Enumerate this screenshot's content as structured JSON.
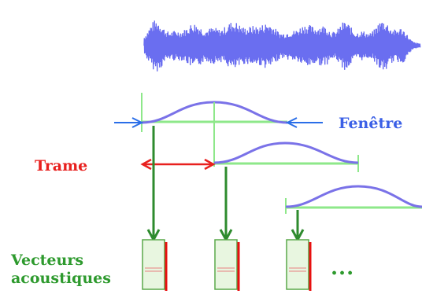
{
  "labels": {
    "window": "Fenêtre",
    "frame": "Trame",
    "acoustic_vectors_line1": "Vecteurs",
    "acoustic_vectors_line2": "acoustiques",
    "ellipsis": "..."
  },
  "colors": {
    "waveform": "#6a6ef0",
    "window_curve": "#7a72e8",
    "window_baseline": "#8ee88a",
    "window_label": "#3a5fe6",
    "frame_label": "#e8201e",
    "frame_arrow": "#e8201e",
    "blue_arrow": "#2a6ee8",
    "green_arrow": "#2e8b2e",
    "vector_box_fill": "#e8f6e0",
    "vector_box_border": "#5aa84a",
    "vector_box_redline": "#e81010",
    "vectors_label": "#2e9a2e"
  }
}
